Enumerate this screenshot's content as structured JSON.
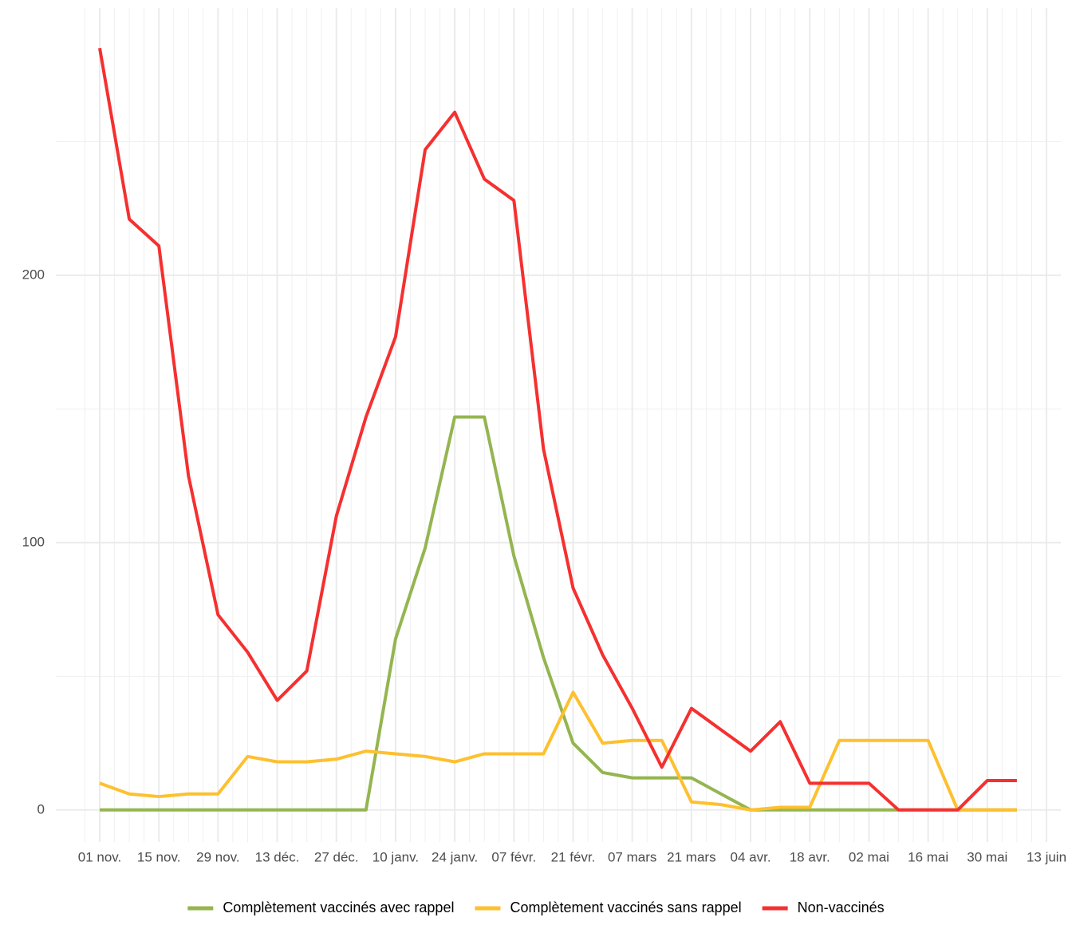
{
  "chart_data": {
    "type": "line",
    "x": [
      "01 nov.",
      "08 nov.",
      "15 nov.",
      "22 nov.",
      "29 nov.",
      "06 déc.",
      "13 déc.",
      "20 déc.",
      "27 déc.",
      "03 janv.",
      "10 janv.",
      "17 janv.",
      "24 janv.",
      "31 janv.",
      "07 févr.",
      "14 févr.",
      "21 févr.",
      "28 févr.",
      "07 mars",
      "14 mars",
      "21 mars",
      "28 mars",
      "04 avr.",
      "11 avr.",
      "18 avr.",
      "25 avr.",
      "02 mai",
      "09 mai",
      "16 mai",
      "23 mai",
      "30 mai",
      "06 juin",
      "13 juin"
    ],
    "xticks": [
      "01 nov.",
      "15 nov.",
      "29 nov.",
      "13 déc.",
      "27 déc.",
      "10 janv.",
      "24 janv.",
      "07 févr.",
      "21 févr.",
      "07 mars",
      "21 mars",
      "04 avr.",
      "18 avr.",
      "02 mai",
      "16 mai",
      "30 mai",
      "13 juin"
    ],
    "ylim": [
      -12,
      300
    ],
    "yticks": [
      0,
      100,
      200
    ],
    "grid": true,
    "legend": "bottom",
    "series": [
      {
        "name": "Complètement vaccinés avec rappel",
        "color": "#94b550",
        "values": [
          0,
          0,
          0,
          0,
          0,
          0,
          0,
          0,
          0,
          0,
          64,
          98,
          147,
          147,
          95,
          57,
          25,
          14,
          12,
          12,
          12,
          6,
          0,
          0,
          0,
          0,
          0,
          0,
          0,
          0,
          0,
          0,
          null
        ]
      },
      {
        "name": "Complètement vaccinés sans rappel",
        "color": "#fdc02f",
        "values": [
          10,
          6,
          5,
          6,
          6,
          20,
          18,
          18,
          19,
          22,
          21,
          20,
          18,
          21,
          21,
          21,
          44,
          25,
          26,
          26,
          3,
          2,
          0,
          1,
          1,
          26,
          26,
          26,
          26,
          0,
          0,
          0,
          null
        ]
      },
      {
        "name": "Non-vaccinés",
        "color": "#f53030",
        "values": [
          285,
          221,
          211,
          125,
          73,
          59,
          41,
          52,
          110,
          147,
          177,
          247,
          261,
          236,
          228,
          135,
          83,
          58,
          38,
          16,
          38,
          30,
          22,
          33,
          10,
          10,
          10,
          0,
          0,
          0,
          11,
          11,
          null
        ]
      }
    ]
  }
}
